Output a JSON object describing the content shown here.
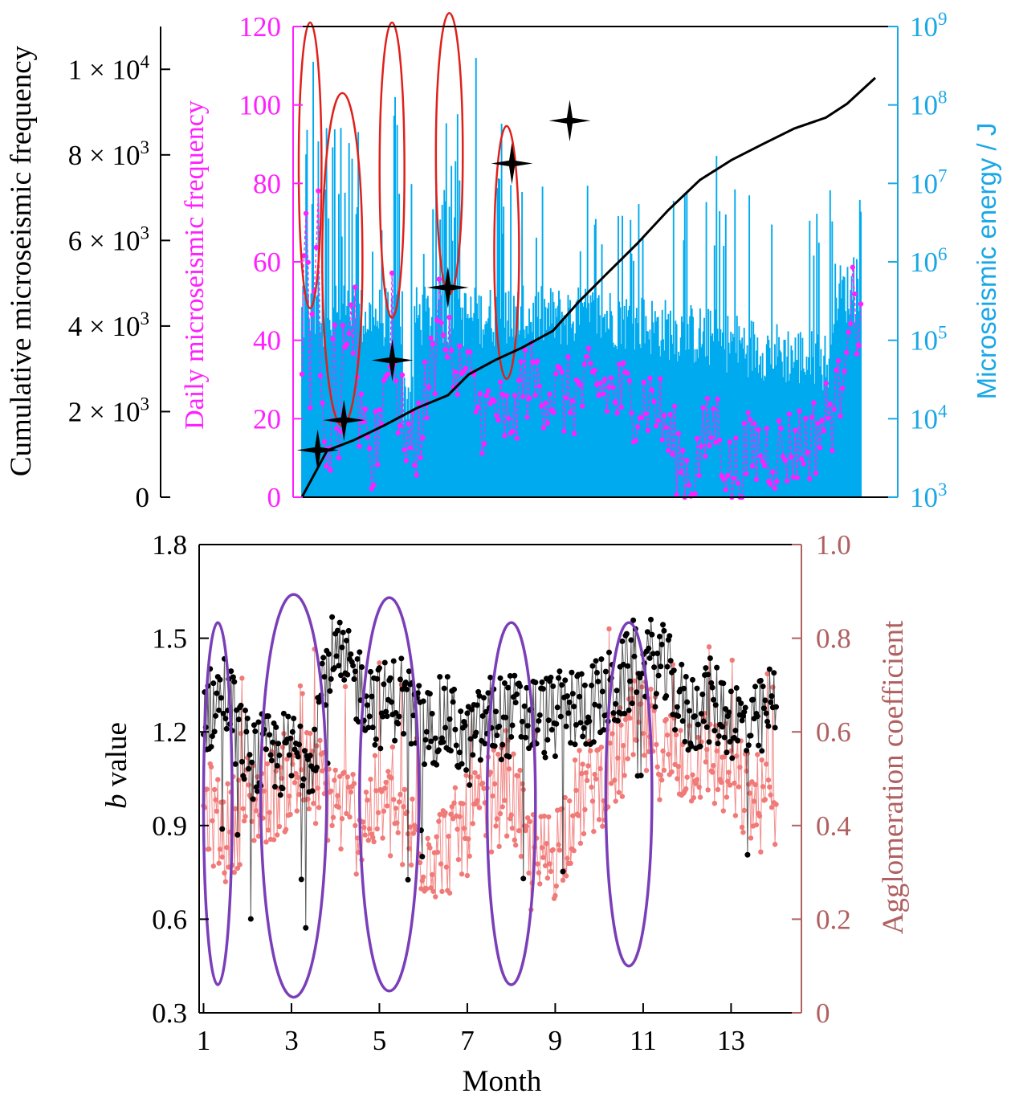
{
  "colors": {
    "axis": "#000000",
    "daily_frequency": "#ff20ff",
    "energy": "#00aaee",
    "energy_label": "#1aa7e6",
    "cumulative": "#000000",
    "red_ellipse": "#e0201a",
    "purple_ellipse": "#7a3fb8",
    "b_value": "#000000",
    "agglomeration": "#f07a78",
    "agglomeration_axis": "#b06060"
  },
  "chart_data": [
    {
      "type": "line",
      "x_unit": "day",
      "left_axis": {
        "label": "Cumulative microseismic frequency",
        "ylim": [
          0,
          11000
        ],
        "tick_values": [
          0,
          2000,
          4000,
          6000,
          8000,
          10000
        ],
        "tick_labels": [
          {
            "mantissa": "0",
            "exp": ""
          },
          {
            "mantissa": "2 × 10",
            "exp": "3"
          },
          {
            "mantissa": "4 × 10",
            "exp": "3"
          },
          {
            "mantissa": "6 × 10",
            "exp": "3"
          },
          {
            "mantissa": "8 × 10",
            "exp": "3"
          },
          {
            "mantissa": "1 × 10",
            "exp": "4"
          }
        ]
      },
      "mid_axis": {
        "label": "Daily microseismic frequency",
        "ylim": [
          0,
          120
        ],
        "ticks": [
          "0",
          "20",
          "40",
          "60",
          "80",
          "100",
          "120"
        ]
      },
      "right_axis": {
        "label": "Microseismic energy / J",
        "scale": "log",
        "ylim": [
          1000,
          1000000000
        ],
        "tick_exponents": [
          3,
          4,
          5,
          6,
          7,
          8,
          9
        ],
        "tick_base": "10"
      },
      "series": [
        {
          "kind": "cumulative-frequency-line",
          "points": [
            [
              1,
              0
            ],
            [
              25,
              1100
            ],
            [
              50,
              1350
            ],
            [
              80,
              1700
            ],
            [
              110,
              2050
            ],
            [
              140,
              2400
            ],
            [
              160,
              2900
            ],
            [
              185,
              3200
            ],
            [
              210,
              3500
            ],
            [
              240,
              3900
            ],
            [
              265,
              4600
            ],
            [
              290,
              5200
            ],
            [
              320,
              5900
            ],
            [
              350,
              6700
            ],
            [
              380,
              7400
            ],
            [
              410,
              7900
            ],
            [
              440,
              8250
            ],
            [
              470,
              8600
            ],
            [
              500,
              8900
            ],
            [
              520,
              9200
            ],
            [
              547,
              9800
            ]
          ]
        },
        {
          "kind": "star-markers",
          "points": [
            [
              16,
              1100
            ],
            [
              41,
              1800
            ],
            [
              87,
              3200
            ],
            [
              140,
              4900
            ],
            [
              201,
              7800
            ],
            [
              256,
              8800
            ]
          ]
        }
      ],
      "highlight_periods": [
        {
          "from_day": 1,
          "to_day": 17
        },
        {
          "from_day": 24,
          "to_day": 57
        },
        {
          "from_day": 80,
          "to_day": 98
        },
        {
          "from_day": 135,
          "to_day": 155
        },
        {
          "from_day": 192,
          "to_day": 210
        }
      ]
    },
    {
      "type": "scatter",
      "xlabel": "Month",
      "xlim": [
        0.9,
        14.6
      ],
      "x_ticks": [
        "1",
        "3",
        "5",
        "7",
        "9",
        "11",
        "13"
      ],
      "left_axis": {
        "label_italic": "b",
        "label_rest": " value",
        "ylim": [
          0.3,
          1.8
        ],
        "ticks": [
          "0.3",
          "0.6",
          "0.9",
          "1.2",
          "1.5",
          "1.8"
        ]
      },
      "right_axis": {
        "label": "Agglomeration coefficient",
        "ylim": [
          0,
          1.0
        ],
        "ticks": [
          "0",
          "0.2",
          "0.4",
          "0.6",
          "0.8",
          "1.0"
        ]
      },
      "series_trends": {
        "b_value": [
          [
            1.0,
            1.25
          ],
          [
            1.5,
            1.33
          ],
          [
            2.0,
            1.12
          ],
          [
            2.5,
            1.12
          ],
          [
            3.0,
            1.13
          ],
          [
            3.5,
            1.15
          ],
          [
            3.8,
            1.45
          ],
          [
            4.2,
            1.4
          ],
          [
            5.0,
            1.28
          ],
          [
            5.5,
            1.32
          ],
          [
            6.0,
            1.2
          ],
          [
            6.5,
            1.25
          ],
          [
            7.0,
            1.15
          ],
          [
            7.5,
            1.25
          ],
          [
            8.0,
            1.25
          ],
          [
            8.5,
            1.25
          ],
          [
            9.0,
            1.25
          ],
          [
            9.5,
            1.28
          ],
          [
            10.0,
            1.3
          ],
          [
            10.5,
            1.35
          ],
          [
            10.9,
            1.45
          ],
          [
            11.5,
            1.4
          ],
          [
            12.0,
            1.25
          ],
          [
            12.5,
            1.3
          ],
          [
            13.0,
            1.25
          ],
          [
            13.5,
            1.2
          ],
          [
            14.0,
            1.3
          ]
        ],
        "agglomeration": [
          [
            1.0,
            0.45
          ],
          [
            1.5,
            0.38
          ],
          [
            2.0,
            0.45
          ],
          [
            2.5,
            0.47
          ],
          [
            3.0,
            0.5
          ],
          [
            3.5,
            0.5
          ],
          [
            4.0,
            0.45
          ],
          [
            4.5,
            0.4
          ],
          [
            5.0,
            0.45
          ],
          [
            5.5,
            0.4
          ],
          [
            6.0,
            0.35
          ],
          [
            6.5,
            0.35
          ],
          [
            7.0,
            0.4
          ],
          [
            7.5,
            0.45
          ],
          [
            8.0,
            0.48
          ],
          [
            8.5,
            0.3
          ],
          [
            9.0,
            0.35
          ],
          [
            9.5,
            0.45
          ],
          [
            10.0,
            0.5
          ],
          [
            10.5,
            0.55
          ],
          [
            10.9,
            0.62
          ],
          [
            11.5,
            0.55
          ],
          [
            12.0,
            0.55
          ],
          [
            12.5,
            0.55
          ],
          [
            13.0,
            0.5
          ],
          [
            13.5,
            0.45
          ],
          [
            14.0,
            0.45
          ]
        ]
      },
      "highlight_months": [
        {
          "from": 1.0,
          "to": 1.65
        },
        {
          "from": 2.3,
          "to": 3.8
        },
        {
          "from": 4.55,
          "to": 5.9
        },
        {
          "from": 7.45,
          "to": 8.55
        },
        {
          "from": 10.15,
          "to": 11.2
        }
      ]
    }
  ]
}
